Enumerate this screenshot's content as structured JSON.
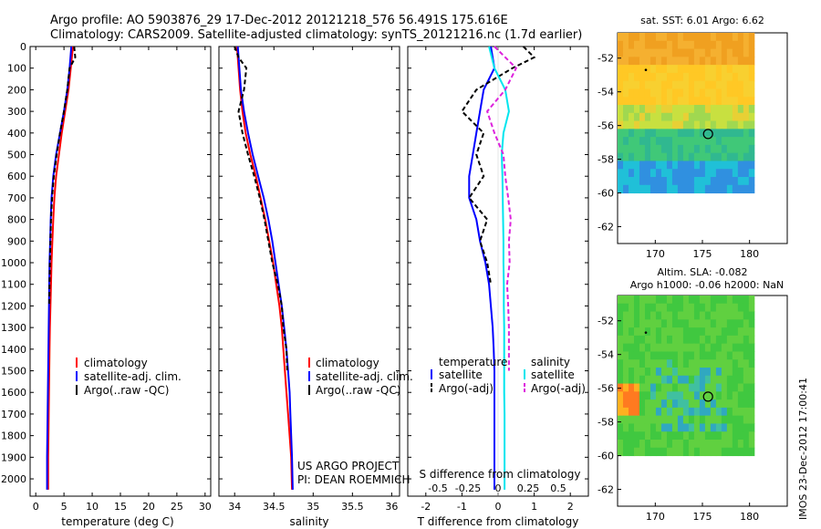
{
  "title": {
    "line1": "Argo profile: AO 5903876_29 17-Dec-2012 20121218_576 56.491S 175.616E",
    "line2": "Climatology: CARS2009. Satellite-adjusted climatology: synTS_20121216.nc (1.7d earlier)"
  },
  "colors": {
    "climatology": "#ff0000",
    "satellite": "#0000ff",
    "argo": "#000000",
    "satellite_salinity": "#00e5ee",
    "argo_salinity": "#dd22dd"
  },
  "depth_ticks": [
    "0",
    "100",
    "200",
    "300",
    "400",
    "500",
    "600",
    "700",
    "800",
    "900",
    "1000",
    "1100",
    "1200",
    "1300",
    "1400",
    "1500",
    "1600",
    "1700",
    "1800",
    "1900",
    "2000"
  ],
  "chart_data": [
    {
      "type": "line",
      "name": "temperature",
      "xlabel": "temperature (deg C)",
      "xlim": [
        -1,
        31
      ],
      "ylim": [
        2080,
        0
      ],
      "xticks": [
        "0",
        "5",
        "10",
        "15",
        "20",
        "25",
        "30"
      ],
      "legend": [
        "climatology",
        "satellite-adj. clim.",
        "Argo(..raw -QC)"
      ],
      "series": [
        {
          "key": "climatology",
          "style": "solid",
          "x": [
            6.6,
            6.2,
            5.8,
            5.2,
            4.6,
            4.1,
            3.6,
            3.3,
            3.1,
            2.95,
            2.8,
            2.7,
            2.6,
            2.5,
            2.45,
            2.4,
            2.35,
            2.3,
            2.25,
            2.2,
            2.2
          ],
          "y": [
            0,
            100,
            200,
            300,
            400,
            500,
            600,
            700,
            800,
            900,
            1000,
            1100,
            1200,
            1300,
            1400,
            1500,
            1600,
            1700,
            1800,
            1900,
            2050
          ]
        },
        {
          "key": "satellite",
          "style": "solid",
          "x": [
            6.3,
            6.0,
            5.6,
            5.0,
            4.3,
            3.6,
            3.1,
            2.8,
            2.65,
            2.55,
            2.45,
            2.4,
            2.35,
            2.3,
            2.25,
            2.2,
            2.15,
            2.1,
            2.05,
            2.0,
            2.0
          ],
          "y": [
            0,
            100,
            200,
            300,
            400,
            500,
            600,
            700,
            800,
            900,
            1000,
            1100,
            1200,
            1300,
            1400,
            1500,
            1600,
            1700,
            1800,
            1900,
            2050
          ]
        },
        {
          "key": "argo",
          "style": "dashed",
          "x": [
            6.8,
            7.0,
            6.0,
            5.6,
            5.0,
            4.3,
            3.7,
            3.2,
            2.9,
            2.7,
            2.6,
            2.5,
            2.45,
            2.4
          ],
          "y": [
            0,
            50,
            100,
            200,
            300,
            400,
            500,
            600,
            700,
            800,
            900,
            1000,
            1100,
            1200
          ]
        }
      ]
    },
    {
      "type": "line",
      "name": "salinity",
      "xlabel": "salinity",
      "xlim": [
        33.8,
        36.1
      ],
      "ylim": [
        2080,
        0
      ],
      "xticks": [
        "34",
        "34.5",
        "35",
        "35.5",
        "36"
      ],
      "legend": [
        "climatology",
        "satellite-adj. clim.",
        "Argo(..raw -QC)"
      ],
      "series": [
        {
          "key": "climatology",
          "style": "solid",
          "x": [
            34.03,
            34.05,
            34.07,
            34.1,
            34.14,
            34.2,
            34.27,
            34.33,
            34.39,
            34.44,
            34.49,
            34.53,
            34.57,
            34.6,
            34.62,
            34.64,
            34.66,
            34.68,
            34.7,
            34.72,
            34.73
          ],
          "y": [
            0,
            100,
            200,
            300,
            400,
            500,
            600,
            700,
            800,
            900,
            1000,
            1100,
            1200,
            1300,
            1400,
            1500,
            1600,
            1700,
            1800,
            1900,
            2050
          ]
        },
        {
          "key": "satellite",
          "style": "solid",
          "x": [
            34.04,
            34.06,
            34.08,
            34.12,
            34.17,
            34.23,
            34.3,
            34.37,
            34.43,
            34.48,
            34.52,
            34.56,
            34.6,
            34.63,
            34.66,
            34.68,
            34.7,
            34.71,
            34.72,
            34.73,
            34.74
          ],
          "y": [
            0,
            100,
            200,
            300,
            400,
            500,
            600,
            700,
            800,
            900,
            1000,
            1100,
            1200,
            1300,
            1400,
            1500,
            1600,
            1700,
            1800,
            1900,
            2050
          ]
        },
        {
          "key": "argo",
          "style": "dashed",
          "x": [
            34.0,
            34.05,
            34.15,
            34.12,
            34.05,
            34.1,
            34.17,
            34.25,
            34.32,
            34.38,
            34.43,
            34.48,
            34.55,
            34.6,
            34.62,
            34.66,
            34.67
          ],
          "y": [
            0,
            50,
            100,
            200,
            300,
            400,
            500,
            600,
            700,
            800,
            900,
            1000,
            1100,
            1200,
            1300,
            1400,
            1500
          ]
        }
      ]
    },
    {
      "type": "line",
      "name": "differences",
      "xlabel": "T difference from climatology",
      "xlim": [
        -2.5,
        2.5
      ],
      "ylim": [
        2080,
        0
      ],
      "xticks": [
        "-2",
        "-1",
        "0",
        "1",
        "2"
      ],
      "top_axis": {
        "label": "S difference from climatology",
        "ticks": [
          "-0.5",
          "-0.25",
          "0",
          "0.25",
          "0.5"
        ]
      },
      "legend_headers": [
        "temperature",
        "salinity"
      ],
      "legend": [
        "satellite",
        "Argo(-adj)",
        "satellite",
        "Argo(-adj)"
      ],
      "series": [
        {
          "key": "satellite",
          "style": "solid",
          "x": [
            -0.2,
            -0.1,
            -0.4,
            -0.5,
            -0.6,
            -0.7,
            -0.8,
            -0.8,
            -0.6,
            -0.5,
            -0.35,
            -0.25,
            -0.2,
            -0.15,
            -0.12,
            -0.1,
            -0.1,
            -0.1,
            -0.1,
            -0.1,
            -0.1
          ],
          "y": [
            0,
            100,
            200,
            300,
            400,
            500,
            600,
            700,
            800,
            900,
            1000,
            1100,
            1200,
            1300,
            1400,
            1500,
            1600,
            1700,
            1800,
            1900,
            2050
          ]
        },
        {
          "key": "argo",
          "style": "dashed",
          "x": [
            0.7,
            1.0,
            0.4,
            -0.6,
            -1.0,
            -0.4,
            -0.6,
            -0.4,
            -0.8,
            -0.3,
            -0.5,
            -0.3,
            -0.2
          ],
          "y": [
            0,
            50,
            100,
            200,
            300,
            400,
            500,
            600,
            700,
            800,
            900,
            1000,
            1100
          ]
        },
        {
          "key": "satellite_salinity",
          "style": "solid",
          "x": [
            -0.25,
            -0.1,
            0.2,
            0.3,
            0.15,
            0.1,
            0.12,
            0.13,
            0.14,
            0.15,
            0.15,
            0.16,
            0.16,
            0.17,
            0.17,
            0.17,
            0.17,
            0.18,
            0.18,
            0.18,
            0.18
          ],
          "y": [
            0,
            100,
            200,
            300,
            400,
            500,
            600,
            700,
            800,
            900,
            1000,
            1100,
            1200,
            1300,
            1400,
            1500,
            1600,
            1700,
            1800,
            1900,
            2050
          ]
        },
        {
          "key": "argo_salinity",
          "style": "dashed",
          "x": [
            -0.1,
            0.5,
            0.2,
            -0.3,
            -0.1,
            0.15,
            0.2,
            0.28,
            0.35,
            0.3,
            0.32,
            0.25,
            0.28,
            0.3,
            0.3,
            0.3
          ],
          "y": [
            0,
            100,
            200,
            300,
            400,
            500,
            600,
            700,
            800,
            900,
            1000,
            1100,
            1200,
            1300,
            1400,
            1500
          ]
        }
      ]
    },
    {
      "type": "heatmap",
      "name": "sst_map",
      "title": "sat. SST: 6.01  Argo: 6.62",
      "xlim": [
        166,
        184
      ],
      "ylim": [
        -63,
        -50.5
      ],
      "xticks": [
        "170",
        "175",
        "180"
      ],
      "yticks": [
        "-52",
        "-54",
        "-56",
        "-58",
        "-60",
        "-62"
      ],
      "data_extent": {
        "x": [
          166,
          180.5
        ],
        "y": [
          -60,
          -50.5
        ]
      },
      "argo_position": [
        175.6,
        -56.5
      ],
      "prev_marker": [
        169,
        -52.7
      ]
    },
    {
      "type": "heatmap",
      "name": "sla_map",
      "title": "Altim. SLA: -0.082",
      "subtitle": "Argo h1000: -0.06 h2000: NaN",
      "xlim": [
        166,
        184
      ],
      "ylim": [
        -63,
        -50.5
      ],
      "xticks": [
        "170",
        "175",
        "180"
      ],
      "yticks": [
        "-52",
        "-54",
        "-56",
        "-58",
        "-60",
        "-62"
      ],
      "data_extent": {
        "x": [
          166,
          180.5
        ],
        "y": [
          -60,
          -50.5
        ]
      },
      "argo_position": [
        175.6,
        -56.5
      ],
      "prev_marker": [
        169,
        -52.7
      ]
    }
  ],
  "annotations": {
    "project_line1": "US ARGO PROJECT",
    "project_line2": "PI: DEAN ROEMMICH"
  },
  "footer_stamp": "IMOS 23-Dec-2012 17:00:41"
}
